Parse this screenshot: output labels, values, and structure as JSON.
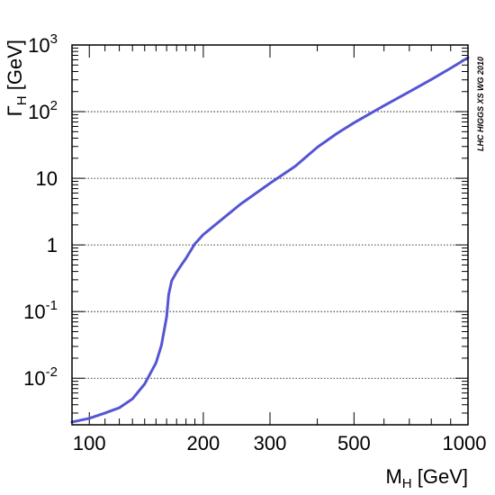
{
  "chart_data": {
    "type": "line",
    "x_scale": "log",
    "y_scale": "log",
    "xlim": [
      90,
      1000
    ],
    "ylim": [
      0.002,
      1000
    ],
    "grid": "horizontal dotted at major y ticks",
    "xlabel": {
      "main": "M",
      "sub": "H",
      "unit": " [GeV]"
    },
    "ylabel": {
      "main": "Γ",
      "sub": "H",
      "unit": " [GeV]"
    },
    "x_tick_labels": [
      {
        "value": 100,
        "label": "100"
      },
      {
        "value": 200,
        "label": "200"
      },
      {
        "value": 300,
        "label": "300"
      },
      {
        "value": 500,
        "label": "500"
      },
      {
        "value": 1000,
        "label": "1000"
      }
    ],
    "y_tick_labels": [
      {
        "value": 0.01,
        "base": "10",
        "exp": "-2"
      },
      {
        "value": 0.1,
        "base": "10",
        "exp": "-1"
      },
      {
        "value": 1,
        "base": "1",
        "exp": ""
      },
      {
        "value": 10,
        "base": "10",
        "exp": ""
      },
      {
        "value": 100,
        "base": "10",
        "exp": "2"
      },
      {
        "value": 1000,
        "base": "10",
        "exp": "3"
      }
    ],
    "annotation": "LHC HIGGS XS WG 2010",
    "series": [
      {
        "color": "#5555d4",
        "x": [
          90,
          100,
          110,
          120,
          130,
          140,
          150,
          155,
          160,
          162,
          165,
          170,
          175,
          180,
          190,
          200,
          250,
          300,
          350,
          400,
          450,
          500,
          600,
          700,
          800,
          900,
          1000
        ],
        "y": [
          0.0022,
          0.0025,
          0.003,
          0.0036,
          0.0049,
          0.0082,
          0.017,
          0.031,
          0.083,
          0.18,
          0.29,
          0.39,
          0.5,
          0.63,
          1.04,
          1.43,
          4.04,
          8.43,
          15.2,
          29.2,
          46.8,
          68.0,
          123,
          199,
          304,
          449,
          647
        ]
      }
    ]
  }
}
